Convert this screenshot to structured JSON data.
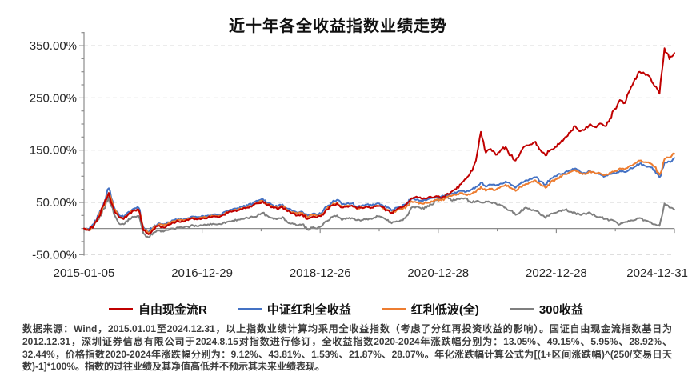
{
  "colors": {
    "background": "#ffffff",
    "gridline": "#d9d9d9",
    "axis": "#8c8c8c",
    "tick_text": "#262626",
    "title_text": "#111111",
    "footnote_text": "#3d3d3d"
  },
  "chart_data": {
    "type": "line",
    "title": "近十年各全收益指数业绩走势",
    "xlabel": "",
    "ylabel": "",
    "ylim": [
      -50,
      376
    ],
    "grid": "horizontal-dashed",
    "legend_position": "bottom",
    "y_ticks": [
      {
        "value": 350,
        "label": "350.00%"
      },
      {
        "value": 250,
        "label": "250.00%"
      },
      {
        "value": 150,
        "label": "150.00%"
      },
      {
        "value": 50,
        "label": "50.00%"
      },
      {
        "value": -50,
        "label": "-50.00%"
      }
    ],
    "x_tick_labels": [
      "2015-01-05",
      "2016-12-29",
      "2018-12-26",
      "2020-12-28",
      "2022-12-28",
      "2024-12-31"
    ],
    "x_sampling": "monthly 2015-01 to 2024-12, cumulative return %",
    "series": [
      {
        "name": "300收益",
        "slug": "csi300-total-return",
        "color": "#7f7f7f",
        "values": [
          0,
          -4,
          5,
          18,
          38,
          60,
          28,
          10,
          8,
          18,
          22,
          24,
          -10,
          -17,
          -8,
          -4,
          -6,
          -3,
          0,
          2,
          1,
          3,
          6,
          4,
          6,
          8,
          9,
          8,
          10,
          13,
          15,
          17,
          18,
          20,
          22,
          25,
          30,
          24,
          20,
          18,
          22,
          12,
          10,
          6,
          8,
          -2,
          2,
          0,
          5,
          14,
          22,
          25,
          16,
          20,
          20,
          16,
          16,
          18,
          18,
          24,
          22,
          16,
          10,
          14,
          16,
          24,
          40,
          42,
          38,
          40,
          46,
          54,
          58,
          65,
          54,
          55,
          58,
          58,
          50,
          52,
          50,
          52,
          50,
          48,
          44,
          40,
          34,
          26,
          32,
          40,
          36,
          34,
          26,
          20,
          28,
          30,
          34,
          36,
          32,
          30,
          26,
          28,
          30,
          24,
          22,
          18,
          16,
          14,
          8,
          12,
          14,
          16,
          20,
          16,
          12,
          8,
          5,
          48,
          40,
          36
        ]
      },
      {
        "name": "中证红利全收益",
        "slug": "csi-dividend-total-return",
        "color": "#4472c4",
        "values": [
          0,
          -2,
          9,
          26,
          50,
          77,
          42,
          26,
          22,
          32,
          38,
          40,
          2,
          -7,
          3,
          10,
          8,
          12,
          16,
          18,
          17,
          20,
          23,
          22,
          24,
          25,
          27,
          26,
          30,
          34,
          37,
          39,
          42,
          44,
          48,
          53,
          57,
          49,
          45,
          42,
          46,
          38,
          34,
          30,
          32,
          24,
          28,
          26,
          31,
          42,
          50,
          55,
          46,
          48,
          48,
          42,
          44,
          46,
          44,
          48,
          46,
          40,
          34,
          40,
          42,
          48,
          57,
          55,
          53,
          54,
          58,
          60,
          61,
          64,
          66,
          68,
          72,
          70,
          74,
          80,
          88,
          80,
          84,
          82,
          86,
          90,
          84,
          78,
          86,
          92,
          95,
          98,
          90,
          84,
          95,
          100,
          104,
          108,
          112,
          115,
          108,
          106,
          110,
          105,
          104,
          100,
          104,
          106,
          110,
          108,
          114,
          118,
          124,
          120,
          118,
          112,
          98,
          126,
          128,
          135
        ]
      },
      {
        "name": "红利低波(全)",
        "slug": "dividend-low-volatility-total-return",
        "color": "#ed7d31",
        "values": [
          0,
          -3,
          7,
          23,
          44,
          68,
          37,
          22,
          18,
          28,
          34,
          36,
          0,
          -9,
          1,
          8,
          6,
          10,
          14,
          16,
          15,
          18,
          21,
          19,
          21,
          22,
          24,
          23,
          27,
          31,
          34,
          36,
          39,
          41,
          44,
          49,
          53,
          46,
          42,
          39,
          43,
          35,
          31,
          28,
          30,
          22,
          26,
          24,
          28,
          38,
          45,
          50,
          42,
          44,
          44,
          38,
          40,
          42,
          40,
          44,
          42,
          36,
          30,
          35,
          37,
          42,
          52,
          50,
          48,
          49,
          52,
          55,
          54,
          58,
          62,
          64,
          68,
          64,
          66,
          70,
          80,
          72,
          76,
          74,
          80,
          84,
          78,
          72,
          80,
          85,
          88,
          92,
          84,
          78,
          88,
          94,
          100,
          104,
          108,
          112,
          106,
          104,
          110,
          106,
          106,
          102,
          107,
          110,
          115,
          113,
          120,
          124,
          130,
          127,
          125,
          118,
          103,
          133,
          136,
          143
        ]
      },
      {
        "name": "自由现金流R",
        "slug": "free-cash-flow-r",
        "color": "#c00000",
        "values": [
          0,
          -3,
          6,
          22,
          45,
          68,
          38,
          22,
          18,
          28,
          34,
          36,
          -4,
          -11,
          -2,
          5,
          2,
          7,
          11,
          14,
          13,
          16,
          19,
          18,
          20,
          21,
          23,
          22,
          26,
          30,
          33,
          35,
          38,
          40,
          44,
          48,
          52,
          45,
          41,
          37,
          41,
          33,
          29,
          25,
          27,
          18,
          22,
          21,
          26,
          36,
          44,
          48,
          40,
          42,
          44,
          38,
          40,
          42,
          40,
          43,
          41,
          35,
          30,
          36,
          40,
          46,
          58,
          61,
          57,
          57,
          60,
          62,
          58,
          65,
          70,
          75,
          85,
          95,
          110,
          130,
          185,
          145,
          152,
          141,
          150,
          156,
          140,
          130,
          146,
          158,
          161,
          166,
          150,
          140,
          150,
          156,
          164,
          175,
          184,
          196,
          186,
          190,
          200,
          194,
          201,
          196,
          210,
          229,
          246,
          240,
          264,
          286,
          300,
          296,
          291,
          272,
          258,
          345,
          324,
          336
        ]
      }
    ],
    "legend_order": [
      "自由现金流R",
      "中证红利全收益",
      "红利低波(全)",
      "300收益"
    ]
  },
  "footnote": {
    "text": "数据来源：Wind，2015.01.01至2024.12.31，以上指数业绩计算均采用全收益指数（考虑了分红再投资收益的影响）。国证自由现金流指数基日为2012.12.31，深圳证券信息有限公司于2024.8.15对指数进行修订，全收益指数2020-2024年涨跌幅分别为：13.05%、49.15%、5.95%、28.92%、32.44%，价格指数2020-2024年涨跌幅分别为：9.12%、43.81%、1.53%、21.87%、28.07%。年化涨跌幅计算公式为[(1+区间涨跌幅)^(250/交易日天数)-1]*100%。指数的过往业绩及其净值高低并不预示其未来业绩表现。"
  }
}
